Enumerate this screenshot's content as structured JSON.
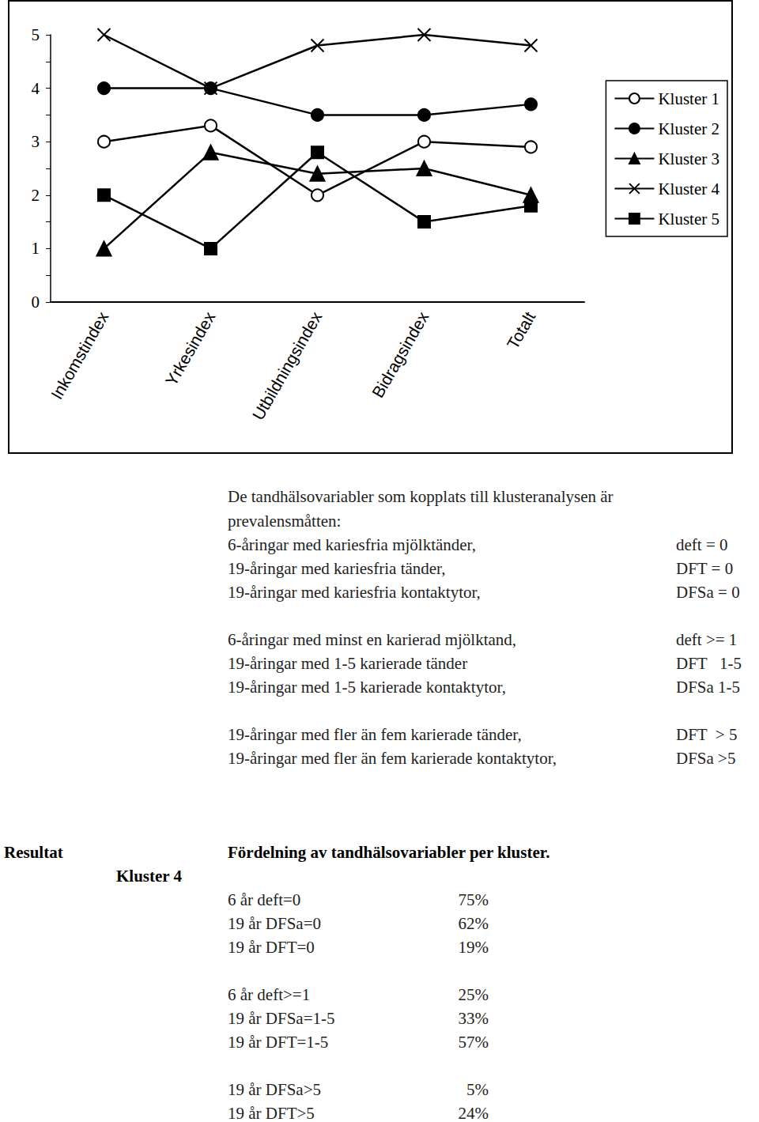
{
  "chart_data": {
    "type": "line",
    "categories": [
      "Inkomstindex",
      "Yrkesindex",
      "Utbildningsindex",
      "Bidragsindex",
      "Totalt"
    ],
    "series": [
      {
        "name": "Kluster 1",
        "color": "#000000",
        "marker": "circle_open",
        "values": [
          3.0,
          3.3,
          2.0,
          3.0,
          2.9
        ]
      },
      {
        "name": "Kluster 2",
        "color": "#000000",
        "marker": "circle",
        "values": [
          4.0,
          4.0,
          3.5,
          3.5,
          3.7
        ]
      },
      {
        "name": "Kluster 3",
        "color": "#000000",
        "marker": "triangle",
        "values": [
          1.0,
          2.8,
          2.4,
          2.5,
          2.0
        ]
      },
      {
        "name": "Kluster 4",
        "color": "#000000",
        "marker": "x",
        "values": [
          5.0,
          4.0,
          4.8,
          5.0,
          4.8
        ]
      },
      {
        "name": "Kluster 5",
        "color": "#000000",
        "marker": "square",
        "values": [
          2.0,
          1.0,
          2.8,
          1.5,
          1.8
        ]
      }
    ],
    "ylim": [
      0,
      5
    ],
    "yticks": [
      0,
      1,
      2,
      3,
      4,
      5
    ],
    "grid": false,
    "legend": "right"
  },
  "document": {
    "intro": [
      "De tandhälsovariabler som kopplats till klusteranalysen är",
      "prevalensmåtten:"
    ],
    "definitions": [
      [
        {
          "label": "6-åringar med kariesfria mjölktänder,",
          "code": "deft = 0"
        },
        {
          "label": "19-åringar med kariesfria tänder,",
          "code": "DFT = 0"
        },
        {
          "label": "19-åringar med kariesfria kontaktytor,",
          "code": "DFSa = 0"
        }
      ],
      [
        {
          "label": "6-åringar med minst en karierad mjölktand,",
          "code": "deft >= 1"
        },
        {
          "label": "19-åringar med 1-5 karierade tänder",
          "code": "DFT   1-5"
        },
        {
          "label": "19-åringar med 1-5 karierade kontaktytor,",
          "code": "DFSa 1-5"
        }
      ],
      [
        {
          "label": "19-åringar med fler än fem karierade tänder,",
          "code": "DFT  > 5"
        },
        {
          "label": "19-åringar med fler än fem karierade kontaktytor,",
          "code": "DFSa >5"
        }
      ]
    ],
    "results": {
      "heading": "Resultat",
      "cluster": "Kluster 4",
      "title": "Fördelning av tandhälsovariabler per kluster.",
      "groups": [
        [
          {
            "label": "6 år deft=0",
            "value": "75%"
          },
          {
            "label": "19 år DFSa=0",
            "value": "62%"
          },
          {
            "label": "19 år DFT=0",
            "value": "19%"
          }
        ],
        [
          {
            "label": "6 år deft>=1",
            "value": "25%"
          },
          {
            "label": "19 år DFSa=1-5",
            "value": "33%"
          },
          {
            "label": "19 år DFT=1-5",
            "value": "57%"
          }
        ],
        [
          {
            "label": "19 år DFSa>5",
            "value": "5%"
          },
          {
            "label": "19 år DFT>5",
            "value": "24%"
          }
        ]
      ]
    }
  }
}
